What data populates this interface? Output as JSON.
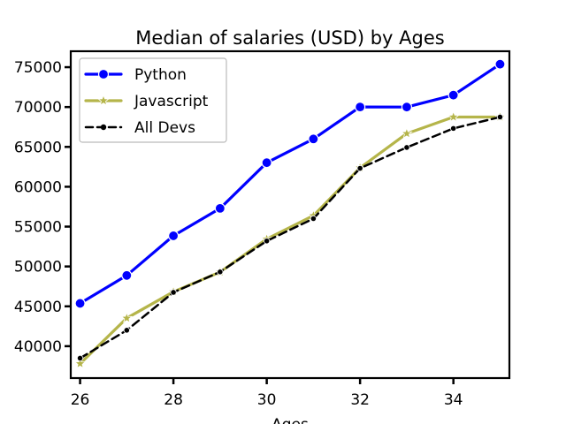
{
  "chart_data": {
    "type": "line",
    "title": "Median of salaries (USD) by Ages",
    "xlabel": "Ages",
    "ylabel": "",
    "x": [
      26,
      27,
      28,
      29,
      30,
      31,
      32,
      33,
      34,
      35
    ],
    "xlim": [
      25.8,
      35.2
    ],
    "ylim": [
      36000,
      77000
    ],
    "xticks": [
      26,
      28,
      30,
      32,
      34
    ],
    "yticks": [
      40000,
      45000,
      50000,
      55000,
      60000,
      65000,
      70000,
      75000
    ],
    "grid": false,
    "legend_position": "top-left",
    "series": [
      {
        "name": "Python",
        "values": [
          45372,
          48876,
          53850,
          57287,
          63016,
          65998,
          70003,
          70000,
          71496,
          75370
        ],
        "color": "#0000ff",
        "marker": "circle",
        "line_style": "solid"
      },
      {
        "name": "Javascript",
        "values": [
          37810,
          43515,
          46823,
          49293,
          53437,
          56373,
          62375,
          66674,
          68745,
          68746
        ],
        "color": "#b5b54a",
        "marker": "star",
        "line_style": "solid"
      },
      {
        "name": "All Devs",
        "values": [
          38496,
          42000,
          46752,
          49320,
          53200,
          56000,
          62316,
          64928,
          67317,
          68748
        ],
        "color": "#000000",
        "marker": "point",
        "line_style": "dashed"
      }
    ]
  }
}
